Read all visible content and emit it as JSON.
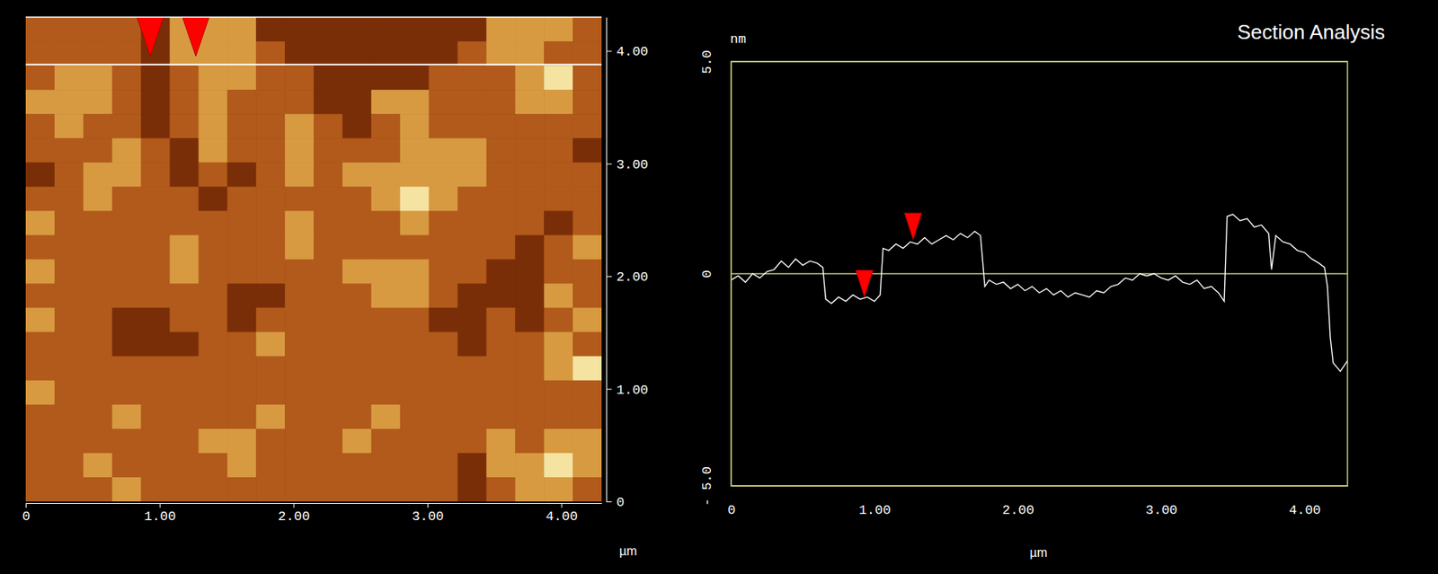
{
  "chart_data": [
    {
      "type": "heatmap",
      "xlabel": "µm",
      "xlim": [
        0,
        4.3
      ],
      "ylim": [
        0,
        4.3
      ],
      "xticks": [
        0,
        {
          "value": 1,
          "label": "1.00"
        },
        {
          "value": 2,
          "label": "2.00"
        },
        {
          "value": 3,
          "label": "3.00"
        },
        {
          "value": 4,
          "label": "4.00"
        }
      ],
      "yticks": [
        0,
        {
          "value": 1,
          "label": "1.00"
        },
        {
          "value": 2,
          "label": "2.00"
        },
        {
          "value": 3,
          "label": "3.00"
        },
        {
          "value": 4,
          "label": "4.00"
        }
      ],
      "zlim": [
        0,
        3
      ],
      "section_y": 3.88,
      "markers": [
        0.93,
        1.27
      ],
      "cells": [
        [
          1,
          1,
          1,
          1,
          0,
          2,
          2,
          2,
          0,
          0,
          0,
          0,
          0,
          0,
          0,
          0,
          2,
          2,
          2,
          1
        ],
        [
          1,
          1,
          1,
          1,
          0,
          2,
          2,
          2,
          1,
          0,
          0,
          0,
          0,
          0,
          0,
          1,
          2,
          2,
          1,
          1
        ],
        [
          1,
          2,
          2,
          1,
          0,
          1,
          2,
          2,
          1,
          1,
          0,
          0,
          0,
          0,
          1,
          1,
          1,
          2,
          3,
          1
        ],
        [
          2,
          2,
          2,
          1,
          0,
          1,
          2,
          1,
          1,
          1,
          0,
          0,
          2,
          2,
          1,
          1,
          1,
          2,
          2,
          1
        ],
        [
          1,
          2,
          1,
          1,
          0,
          1,
          2,
          1,
          1,
          2,
          1,
          0,
          1,
          2,
          1,
          1,
          1,
          1,
          1,
          1
        ],
        [
          1,
          1,
          1,
          2,
          1,
          0,
          2,
          1,
          1,
          2,
          1,
          1,
          1,
          2,
          2,
          2,
          1,
          1,
          1,
          0
        ],
        [
          0,
          1,
          2,
          2,
          1,
          0,
          1,
          0,
          1,
          2,
          1,
          2,
          2,
          2,
          2,
          2,
          1,
          1,
          1,
          1
        ],
        [
          1,
          1,
          2,
          1,
          1,
          1,
          0,
          1,
          1,
          1,
          1,
          1,
          2,
          3,
          2,
          1,
          1,
          1,
          1,
          1
        ],
        [
          2,
          1,
          1,
          1,
          1,
          1,
          1,
          1,
          1,
          2,
          1,
          1,
          1,
          2,
          1,
          1,
          1,
          1,
          0,
          1
        ],
        [
          1,
          1,
          1,
          1,
          1,
          2,
          1,
          1,
          1,
          2,
          1,
          1,
          1,
          1,
          1,
          1,
          1,
          0,
          1,
          2
        ],
        [
          2,
          1,
          1,
          1,
          1,
          2,
          1,
          1,
          1,
          1,
          1,
          2,
          2,
          2,
          1,
          1,
          0,
          0,
          1,
          1
        ],
        [
          1,
          1,
          1,
          1,
          1,
          1,
          1,
          0,
          0,
          1,
          1,
          1,
          2,
          2,
          1,
          0,
          0,
          0,
          2,
          1
        ],
        [
          2,
          1,
          1,
          0,
          0,
          1,
          1,
          0,
          1,
          1,
          1,
          1,
          1,
          1,
          0,
          0,
          1,
          0,
          1,
          2
        ],
        [
          1,
          1,
          1,
          0,
          0,
          0,
          1,
          1,
          2,
          1,
          1,
          1,
          1,
          1,
          1,
          0,
          1,
          1,
          2,
          1
        ],
        [
          1,
          1,
          1,
          1,
          1,
          1,
          1,
          1,
          1,
          1,
          1,
          1,
          1,
          1,
          1,
          1,
          1,
          1,
          2,
          3
        ],
        [
          2,
          1,
          1,
          1,
          1,
          1,
          1,
          1,
          1,
          1,
          1,
          1,
          1,
          1,
          1,
          1,
          1,
          1,
          1,
          1
        ],
        [
          1,
          1,
          1,
          2,
          1,
          1,
          1,
          1,
          2,
          1,
          1,
          1,
          2,
          1,
          1,
          1,
          1,
          1,
          1,
          1
        ],
        [
          1,
          1,
          1,
          1,
          1,
          1,
          2,
          2,
          1,
          1,
          1,
          2,
          1,
          1,
          1,
          1,
          2,
          1,
          2,
          2
        ],
        [
          1,
          1,
          2,
          1,
          1,
          1,
          1,
          2,
          1,
          1,
          1,
          1,
          1,
          1,
          1,
          0,
          2,
          2,
          3,
          2
        ],
        [
          1,
          1,
          1,
          2,
          1,
          1,
          1,
          1,
          1,
          1,
          1,
          1,
          1,
          1,
          1,
          0,
          1,
          2,
          2,
          1
        ]
      ]
    },
    {
      "type": "line",
      "title": "Section Analysis",
      "xlabel": "µm",
      "ylabel": "nm",
      "color": "#ffffff",
      "grid": true,
      "xlim": [
        0,
        4.3
      ],
      "ylim": [
        -5,
        5
      ],
      "xticks": [
        0,
        {
          "value": 1,
          "label": "1.00"
        },
        {
          "value": 2,
          "label": "2.00"
        },
        {
          "value": 3,
          "label": "3.00"
        },
        {
          "value": 4,
          "label": "4.00"
        }
      ],
      "yticks": [
        {
          "value": -5,
          "label": "- 5.0"
        },
        0,
        {
          "value": 5,
          "label": "5.0"
        }
      ],
      "markers": {
        "x": [
          0.93,
          1.27
        ],
        "y": [
          -0.6,
          0.75
        ]
      },
      "x": [
        0,
        0.05,
        0.1,
        0.15,
        0.2,
        0.25,
        0.3,
        0.35,
        0.4,
        0.45,
        0.5,
        0.55,
        0.6,
        0.64,
        0.66,
        0.7,
        0.75,
        0.8,
        0.85,
        0.9,
        0.95,
        1,
        1.04,
        1.06,
        1.1,
        1.15,
        1.2,
        1.25,
        1.3,
        1.35,
        1.4,
        1.45,
        1.5,
        1.55,
        1.6,
        1.65,
        1.7,
        1.74,
        1.77,
        1.8,
        1.85,
        1.9,
        1.95,
        2,
        2.05,
        2.1,
        2.15,
        2.2,
        2.25,
        2.3,
        2.35,
        2.4,
        2.45,
        2.5,
        2.55,
        2.6,
        2.65,
        2.7,
        2.75,
        2.8,
        2.85,
        2.9,
        2.95,
        3,
        3.05,
        3.1,
        3.15,
        3.2,
        3.25,
        3.3,
        3.35,
        3.4,
        3.44,
        3.46,
        3.5,
        3.55,
        3.6,
        3.65,
        3.7,
        3.75,
        3.77,
        3.8,
        3.85,
        3.9,
        3.95,
        4,
        4.05,
        4.1,
        4.14,
        4.16,
        4.18,
        4.2,
        4.25,
        4.3
      ],
      "values": [
        -0.15,
        -0.05,
        -0.2,
        0.0,
        -0.1,
        0.05,
        0.1,
        0.3,
        0.15,
        0.35,
        0.2,
        0.3,
        0.25,
        0.15,
        -0.6,
        -0.7,
        -0.55,
        -0.65,
        -0.5,
        -0.6,
        -0.55,
        -0.65,
        -0.5,
        0.6,
        0.55,
        0.7,
        0.6,
        0.75,
        0.7,
        0.85,
        0.7,
        0.8,
        0.9,
        0.8,
        0.95,
        0.85,
        1.0,
        0.9,
        -0.3,
        -0.15,
        -0.25,
        -0.2,
        -0.35,
        -0.25,
        -0.4,
        -0.3,
        -0.45,
        -0.35,
        -0.5,
        -0.4,
        -0.55,
        -0.45,
        -0.5,
        -0.55,
        -0.4,
        -0.45,
        -0.3,
        -0.25,
        -0.1,
        -0.15,
        0.0,
        -0.05,
        0.0,
        -0.1,
        -0.15,
        -0.05,
        -0.2,
        -0.25,
        -0.15,
        -0.35,
        -0.3,
        -0.45,
        -0.65,
        1.35,
        1.4,
        1.25,
        1.3,
        1.1,
        1.15,
        0.95,
        0.1,
        0.9,
        0.75,
        0.7,
        0.55,
        0.5,
        0.35,
        0.25,
        0.15,
        -0.3,
        -1.5,
        -2.1,
        -2.3,
        -2.05
      ]
    }
  ]
}
